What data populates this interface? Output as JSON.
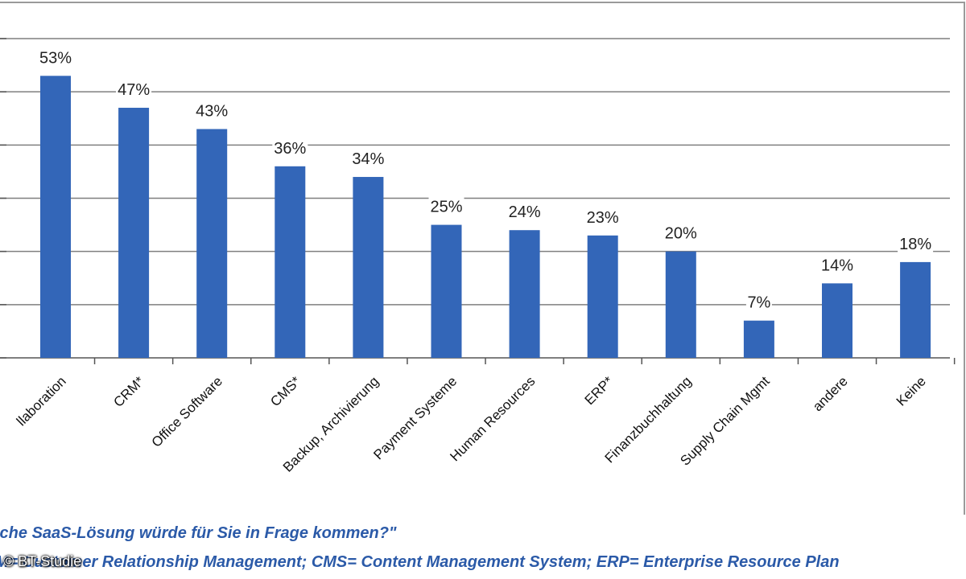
{
  "chart_data": {
    "type": "bar",
    "categories": [
      "llaboration",
      "CRM*",
      "Office Software",
      "CMS*",
      "Backup, Archivierung",
      "Payment Systeme",
      "Human Resources",
      "ERP*",
      "Finanzbuchhaltung",
      "Supply Chain Mgmt",
      "andere",
      "Keine"
    ],
    "values": [
      53,
      47,
      43,
      36,
      34,
      25,
      24,
      23,
      20,
      7,
      14,
      18
    ],
    "value_labels": [
      "53%",
      "47%",
      "43%",
      "36%",
      "34%",
      "25%",
      "24%",
      "23%",
      "20%",
      "7%",
      "14%",
      "18%"
    ],
    "ylim": [
      0,
      60
    ],
    "grid": true,
    "bar_color": "#3366b8",
    "gridline_color": "#7f7f7f",
    "xlabel": "",
    "ylabel": ""
  },
  "footnotes": {
    "question": "lche SaaS-Lösung würde für Sie in Frage kommen?\"",
    "legend": "M= Customer Relationship Management; CMS= Content Management System; ERP= Enterprise Resource Plan"
  },
  "credit": "© BT-Studie",
  "footnote_color": "#2b5aa8"
}
